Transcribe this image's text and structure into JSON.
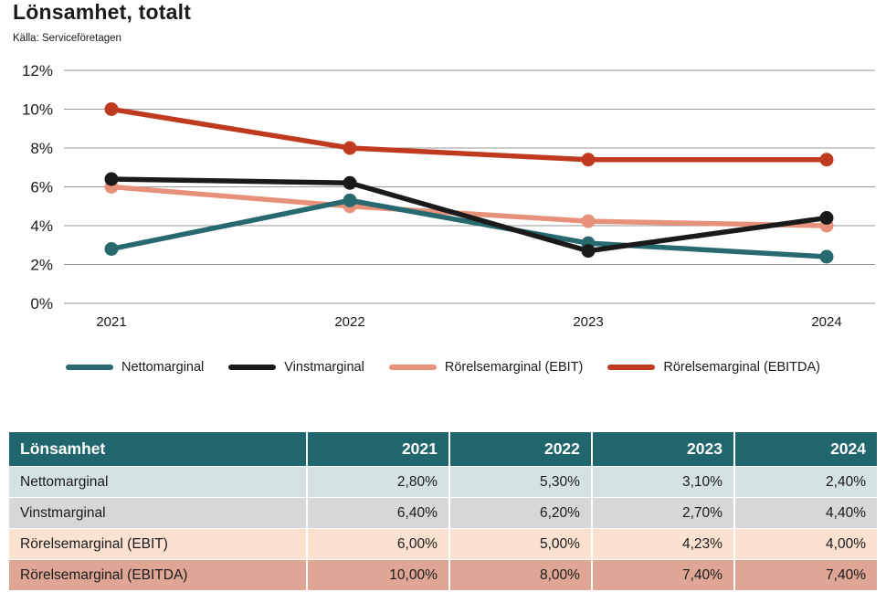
{
  "page": {
    "title": "Lönsamhet, totalt",
    "source": "Källa: Serviceföretagen"
  },
  "chart_data": {
    "type": "line",
    "title": "Lönsamhet, totalt",
    "categories": [
      "2021",
      "2022",
      "2023",
      "2024"
    ],
    "series": [
      {
        "name": "Nettomarginal",
        "color": "#27696F",
        "values": [
          2.8,
          5.3,
          3.1,
          2.4
        ]
      },
      {
        "name": "Vinstmarginal",
        "color": "#1A1A1A",
        "values": [
          6.4,
          6.2,
          2.7,
          4.4
        ]
      },
      {
        "name": "Rörelsemarginal (EBIT)",
        "color": "#E8917A",
        "values": [
          6.0,
          5.0,
          4.23,
          4.0
        ]
      },
      {
        "name": "Rörelsemarginal (EBITDA)",
        "color": "#BF3A1F",
        "values": [
          10.0,
          8.0,
          7.4,
          7.4
        ]
      }
    ],
    "ylim": [
      0,
      12
    ],
    "ytick_step": 2,
    "ytick_labels": [
      "0%",
      "2%",
      "4%",
      "6%",
      "8%",
      "10%",
      "12%"
    ],
    "grid": true,
    "gridline_color": "#999999",
    "legend_position": "bottom"
  },
  "table": {
    "header": [
      "Lönsamhet",
      "2021",
      "2022",
      "2023",
      "2024"
    ],
    "header_bg": "#21666C",
    "header_text_color": "#FFFFFF",
    "rows": [
      {
        "label": "Nettomarginal",
        "bg": "#D5E2E3",
        "cells": [
          "2,80%",
          "5,30%",
          "3,10%",
          "2,40%"
        ]
      },
      {
        "label": "Vinstmarginal",
        "bg": "#D7D7D7",
        "cells": [
          "6,40%",
          "6,20%",
          "2,70%",
          "4,40%"
        ]
      },
      {
        "label": "Rörelsemarginal (EBIT)",
        "bg": "#FBE2D0",
        "cells": [
          "6,00%",
          "5,00%",
          "4,23%",
          "4,00%"
        ]
      },
      {
        "label": "Rörelsemarginal (EBITDA)",
        "bg": "#E0A695",
        "cells": [
          "10,00%",
          "8,00%",
          "7,40%",
          "7,40%"
        ]
      }
    ]
  }
}
